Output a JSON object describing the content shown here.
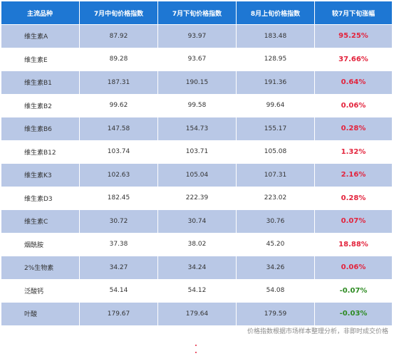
{
  "table": {
    "headers": [
      "主流品种",
      "7月中旬价格指数",
      "7月下旬价格指数",
      "8月上旬价格指数",
      "较7月下旬涨幅"
    ],
    "rows": [
      {
        "name": "维生素A",
        "mid_jul": "87.92",
        "late_jul": "93.97",
        "early_aug": "183.48",
        "change": "95.25%",
        "dir": "up"
      },
      {
        "name": "维生素E",
        "mid_jul": "89.28",
        "late_jul": "93.67",
        "early_aug": "128.95",
        "change": "37.66%",
        "dir": "up"
      },
      {
        "name": "维生素B1",
        "mid_jul": "187.31",
        "late_jul": "190.15",
        "early_aug": "191.36",
        "change": "0.64%",
        "dir": "up"
      },
      {
        "name": "维生素B2",
        "mid_jul": "99.62",
        "late_jul": "99.58",
        "early_aug": "99.64",
        "change": "0.06%",
        "dir": "up"
      },
      {
        "name": "维生素B6",
        "mid_jul": "147.58",
        "late_jul": "154.73",
        "early_aug": "155.17",
        "change": "0.28%",
        "dir": "up"
      },
      {
        "name": "维生素B12",
        "mid_jul": "103.74",
        "late_jul": "103.71",
        "early_aug": "105.08",
        "change": "1.32%",
        "dir": "up"
      },
      {
        "name": "维生素K3",
        "mid_jul": "102.63",
        "late_jul": "105.04",
        "early_aug": "107.31",
        "change": "2.16%",
        "dir": "up"
      },
      {
        "name": "维生素D3",
        "mid_jul": "182.45",
        "late_jul": "222.39",
        "early_aug": "223.02",
        "change": "0.28%",
        "dir": "up"
      },
      {
        "name": "维生素C",
        "mid_jul": "30.72",
        "late_jul": "30.74",
        "early_aug": "30.76",
        "change": "0.07%",
        "dir": "up"
      },
      {
        "name": "烟酰胺",
        "mid_jul": "37.38",
        "late_jul": "38.02",
        "early_aug": "45.20",
        "change": "18.88%",
        "dir": "up"
      },
      {
        "name": "2%生物素",
        "mid_jul": "34.27",
        "late_jul": "34.24",
        "early_aug": "34.26",
        "change": "0.06%",
        "dir": "up"
      },
      {
        "name": "泛酸钙",
        "mid_jul": "54.14",
        "late_jul": "54.12",
        "early_aug": "54.08",
        "change": "-0.07%",
        "dir": "down"
      },
      {
        "name": "叶酸",
        "mid_jul": "179.67",
        "late_jul": "179.64",
        "early_aug": "179.59",
        "change": "-0.03%",
        "dir": "down"
      }
    ]
  },
  "footnote": "价格指数根据市场样本整理分析，非即时成交价格",
  "colors": {
    "header_bg": "#1e77d3",
    "stripe_bg": "#b9c8e6",
    "rise": "#e3243d",
    "fall": "#2e8b23"
  }
}
